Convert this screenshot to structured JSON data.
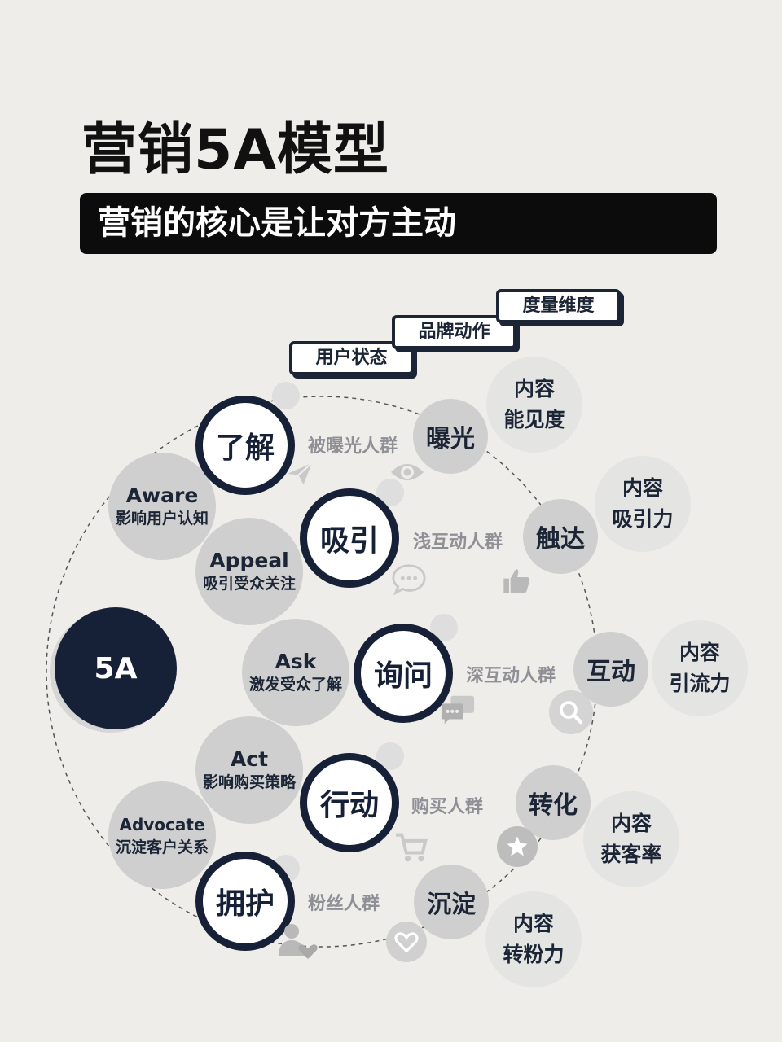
{
  "title": "营销5A模型",
  "banner": "营销的核心是让对方主动",
  "tags": {
    "user_state": "用户状态",
    "brand_action": "品牌动作",
    "measure": "度量维度"
  },
  "center": "5A",
  "stages": [
    {
      "en": "Aware",
      "cn": "影响用户认知",
      "state": "了解",
      "group": "被曝光人群",
      "action": "曝光",
      "measure": [
        "内容",
        "能见度"
      ]
    },
    {
      "en": "Appeal",
      "cn": "吸引受众关注",
      "state": "吸引",
      "group": "浅互动人群",
      "action": "触达",
      "measure": [
        "内容",
        "吸引力"
      ]
    },
    {
      "en": "Ask",
      "cn": "激发受众了解",
      "state": "询问",
      "group": "深互动人群",
      "action": "互动",
      "measure": [
        "内容",
        "引流力"
      ]
    },
    {
      "en": "Act",
      "cn": "影响购买策略",
      "state": "行动",
      "group": "购买人群",
      "action": "转化",
      "measure": [
        "内容",
        "获客率"
      ]
    },
    {
      "en": "Advocate",
      "cn": "沉淀客户关系",
      "state": "拥护",
      "group": "粉丝人群",
      "action": "沉淀",
      "measure": [
        "内容",
        "转粉力"
      ]
    }
  ],
  "icons": [
    "paper-plane-icon",
    "eye-icon",
    "chat-bubble-icon",
    "thumbs-up-icon",
    "chat-dots-icon",
    "search-icon",
    "cart-icon",
    "star-icon",
    "user-heart-icon",
    "heart-icon"
  ],
  "colors": {
    "navy": "#162036",
    "background": "#efedea",
    "gray": "#cfcfcf",
    "light_gray": "#e4e4e3"
  }
}
